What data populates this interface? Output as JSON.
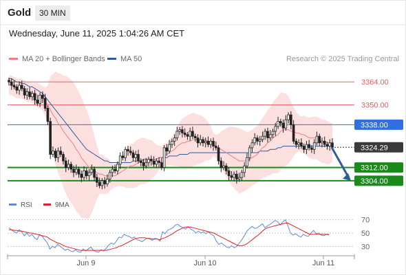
{
  "header": {
    "title": "Gold",
    "timeframe": "30 MIN",
    "datetime": "Wednesday, June 11, 2025 1:04:26 AM CET"
  },
  "legend": {
    "ma20_label": "MA 20 + Bollinger Bands",
    "ma20_color": "#f08080",
    "ma50_label": "MA 50",
    "ma50_color": "#2e5b9a",
    "research": "Research © 2025 Trading Central"
  },
  "chart_data": [
    {
      "type": "candlestick",
      "title": "Gold",
      "ylim": [
        3296,
        3372
      ],
      "x_ticks": [
        "Jun 9",
        "Jun 10",
        "Jun 11"
      ],
      "levels": [
        {
          "value": 3364.0,
          "label": "3364.00",
          "kind": "resistance",
          "color": "#e06060"
        },
        {
          "value": 3350.0,
          "label": "3350.00",
          "kind": "resistance",
          "color": "#e06060"
        },
        {
          "value": 3338.0,
          "label": "3338.00",
          "kind": "pivot",
          "color": "#2f6fe0"
        },
        {
          "value": 3324.29,
          "label": "3324.29",
          "kind": "last",
          "color": "#333333"
        },
        {
          "value": 3312.0,
          "label": "3312.00",
          "kind": "support",
          "color": "#1a8a1a"
        },
        {
          "value": 3304.0,
          "label": "3304.00",
          "kind": "support",
          "color": "#1a8a1a"
        }
      ],
      "close": [
        3364,
        3362,
        3361,
        3359,
        3362,
        3360,
        3356,
        3358,
        3355,
        3357,
        3353,
        3351,
        3356,
        3354,
        3348,
        3340,
        3320,
        3322,
        3318,
        3322,
        3320,
        3316,
        3312,
        3314,
        3311,
        3309,
        3311,
        3308,
        3306,
        3310,
        3307,
        3309,
        3311,
        3306,
        3303,
        3301,
        3304,
        3302,
        3305,
        3309,
        3311,
        3310,
        3314,
        3319,
        3318,
        3323,
        3322,
        3321,
        3318,
        3320,
        3316,
        3315,
        3313,
        3315,
        3317,
        3316,
        3314,
        3316,
        3315,
        3312,
        3324,
        3322,
        3326,
        3328,
        3330,
        3334,
        3335,
        3333,
        3332,
        3331,
        3334,
        3331,
        3330,
        3327,
        3329,
        3327,
        3328,
        3326,
        3328,
        3325,
        3324,
        3316,
        3312,
        3313,
        3310,
        3307,
        3306,
        3308,
        3305,
        3306,
        3309,
        3313,
        3318,
        3324,
        3327,
        3330,
        3328,
        3329,
        3331,
        3334,
        3330,
        3332,
        3334,
        3337,
        3340,
        3339,
        3336,
        3341,
        3344,
        3338,
        3328,
        3326,
        3327,
        3325,
        3323,
        3326,
        3324,
        3323,
        3327,
        3331,
        3327,
        3328,
        3326,
        3325,
        3327,
        3324.29
      ],
      "ma20": [
        3362,
        3362,
        3361,
        3360,
        3360,
        3360,
        3359,
        3358,
        3358,
        3357,
        3357,
        3356,
        3355,
        3354,
        3352,
        3350,
        3347,
        3344,
        3342,
        3339,
        3337,
        3334,
        3332,
        3330,
        3328,
        3326,
        3323,
        3321,
        3318,
        3316,
        3314,
        3312,
        3311,
        3310,
        3309,
        3308,
        3308,
        3307,
        3307,
        3307,
        3307,
        3307,
        3308,
        3309,
        3310,
        3311,
        3312,
        3313,
        3313,
        3314,
        3315,
        3316,
        3316,
        3316,
        3316,
        3317,
        3317,
        3317,
        3318,
        3318,
        3319,
        3320,
        3321,
        3322,
        3323,
        3325,
        3326,
        3327,
        3327,
        3328,
        3328,
        3329,
        3329,
        3329,
        3329,
        3329,
        3329,
        3328,
        3327,
        3326,
        3325,
        3324,
        3323,
        3322,
        3321,
        3320,
        3319,
        3318,
        3317,
        3316,
        3316,
        3316,
        3316,
        3317,
        3318,
        3319,
        3320,
        3322,
        3324,
        3325,
        3327,
        3328,
        3330,
        3331,
        3332,
        3334,
        3335,
        3335,
        3335,
        3334,
        3334,
        3333,
        3333,
        3332,
        3332,
        3331,
        3330,
        3330,
        3330,
        3330,
        3329,
        3328,
        3328,
        3327,
        3327,
        3327
      ],
      "ma50": [
        3366,
        3366,
        3365,
        3364,
        3364,
        3363,
        3363,
        3362,
        3361,
        3361,
        3360,
        3359,
        3358,
        3357,
        3355,
        3353,
        3351,
        3349,
        3347,
        3345,
        3343,
        3341,
        3339,
        3337,
        3335,
        3333,
        3331,
        3329,
        3327,
        3325,
        3323,
        3322,
        3321,
        3320,
        3319,
        3318,
        3317,
        3316,
        3316,
        3315,
        3315,
        3315,
        3315,
        3315,
        3315,
        3315,
        3315,
        3315,
        3316,
        3316,
        3316,
        3316,
        3317,
        3317,
        3317,
        3317,
        3317,
        3317,
        3318,
        3318,
        3318,
        3318,
        3319,
        3319,
        3319,
        3319,
        3320,
        3320,
        3320,
        3320,
        3321,
        3321,
        3321,
        3321,
        3321,
        3321,
        3321,
        3321,
        3321,
        3321,
        3321,
        3321,
        3321,
        3321,
        3321,
        3321,
        3321,
        3321,
        3321,
        3321,
        3321,
        3321,
        3321,
        3321,
        3321,
        3321,
        3321,
        3322,
        3322,
        3322,
        3322,
        3323,
        3323,
        3323,
        3324,
        3324,
        3325,
        3325,
        3325,
        3325,
        3325,
        3325,
        3325,
        3325,
        3325,
        3325,
        3325,
        3325,
        3325,
        3325,
        3325,
        3325,
        3325,
        3325,
        3325,
        3325
      ],
      "projection": {
        "from": 3324.29,
        "to": 3304.0,
        "color": "#2e5b9a"
      }
    },
    {
      "type": "line",
      "title": "RSI",
      "ylim": [
        20,
        80
      ],
      "y_ticks": [
        70,
        50,
        30
      ],
      "series": [
        {
          "name": "RSI",
          "color": "#5b8bd9",
          "values": [
            58,
            55,
            52,
            50,
            55,
            52,
            46,
            50,
            45,
            48,
            43,
            40,
            48,
            45,
            40,
            35,
            26,
            30,
            28,
            33,
            30,
            27,
            24,
            26,
            23,
            22,
            25,
            22,
            21,
            26,
            23,
            26,
            29,
            24,
            22,
            21,
            25,
            23,
            27,
            32,
            35,
            33,
            38,
            44,
            43,
            48,
            46,
            45,
            42,
            44,
            40,
            39,
            37,
            40,
            42,
            41,
            39,
            42,
            41,
            38,
            52,
            49,
            54,
            56,
            58,
            62,
            63,
            60,
            58,
            56,
            60,
            56,
            54,
            50,
            53,
            50,
            52,
            49,
            52,
            48,
            46,
            38,
            33,
            35,
            32,
            29,
            28,
            31,
            28,
            30,
            35,
            40,
            46,
            53,
            57,
            60,
            57,
            58,
            61,
            64,
            58,
            61,
            63,
            66,
            69,
            67,
            62,
            67,
            70,
            61,
            50,
            47,
            49,
            46,
            44,
            48,
            46,
            45,
            50,
            54,
            49,
            50,
            47,
            46,
            48,
            47
          ]
        },
        {
          "name": "9MA",
          "color": "#e02020",
          "values": [
            55,
            55,
            54,
            54,
            53,
            53,
            52,
            51,
            50,
            50,
            49,
            48,
            47,
            46,
            45,
            44,
            41,
            39,
            37,
            35,
            34,
            32,
            30,
            29,
            28,
            27,
            26,
            25,
            24,
            24,
            24,
            24,
            24,
            24,
            24,
            24,
            24,
            24,
            24,
            25,
            26,
            27,
            28,
            30,
            31,
            33,
            35,
            37,
            39,
            41,
            42,
            43,
            43,
            43,
            42,
            42,
            41,
            41,
            41,
            40,
            42,
            43,
            45,
            47,
            49,
            52,
            54,
            56,
            58,
            59,
            59,
            59,
            58,
            57,
            56,
            55,
            54,
            53,
            52,
            51,
            50,
            48,
            46,
            44,
            42,
            40,
            38,
            36,
            34,
            32,
            31,
            31,
            32,
            34,
            37,
            40,
            43,
            46,
            49,
            53,
            56,
            58,
            59,
            60,
            61,
            62,
            63,
            64,
            65,
            65,
            63,
            61,
            59,
            57,
            55,
            53,
            51,
            49,
            48,
            48,
            48,
            48,
            48,
            48,
            48,
            48
          ]
        }
      ]
    }
  ],
  "rsi_legend": {
    "rsi_label": "RSI",
    "ma_label": "9MA"
  }
}
